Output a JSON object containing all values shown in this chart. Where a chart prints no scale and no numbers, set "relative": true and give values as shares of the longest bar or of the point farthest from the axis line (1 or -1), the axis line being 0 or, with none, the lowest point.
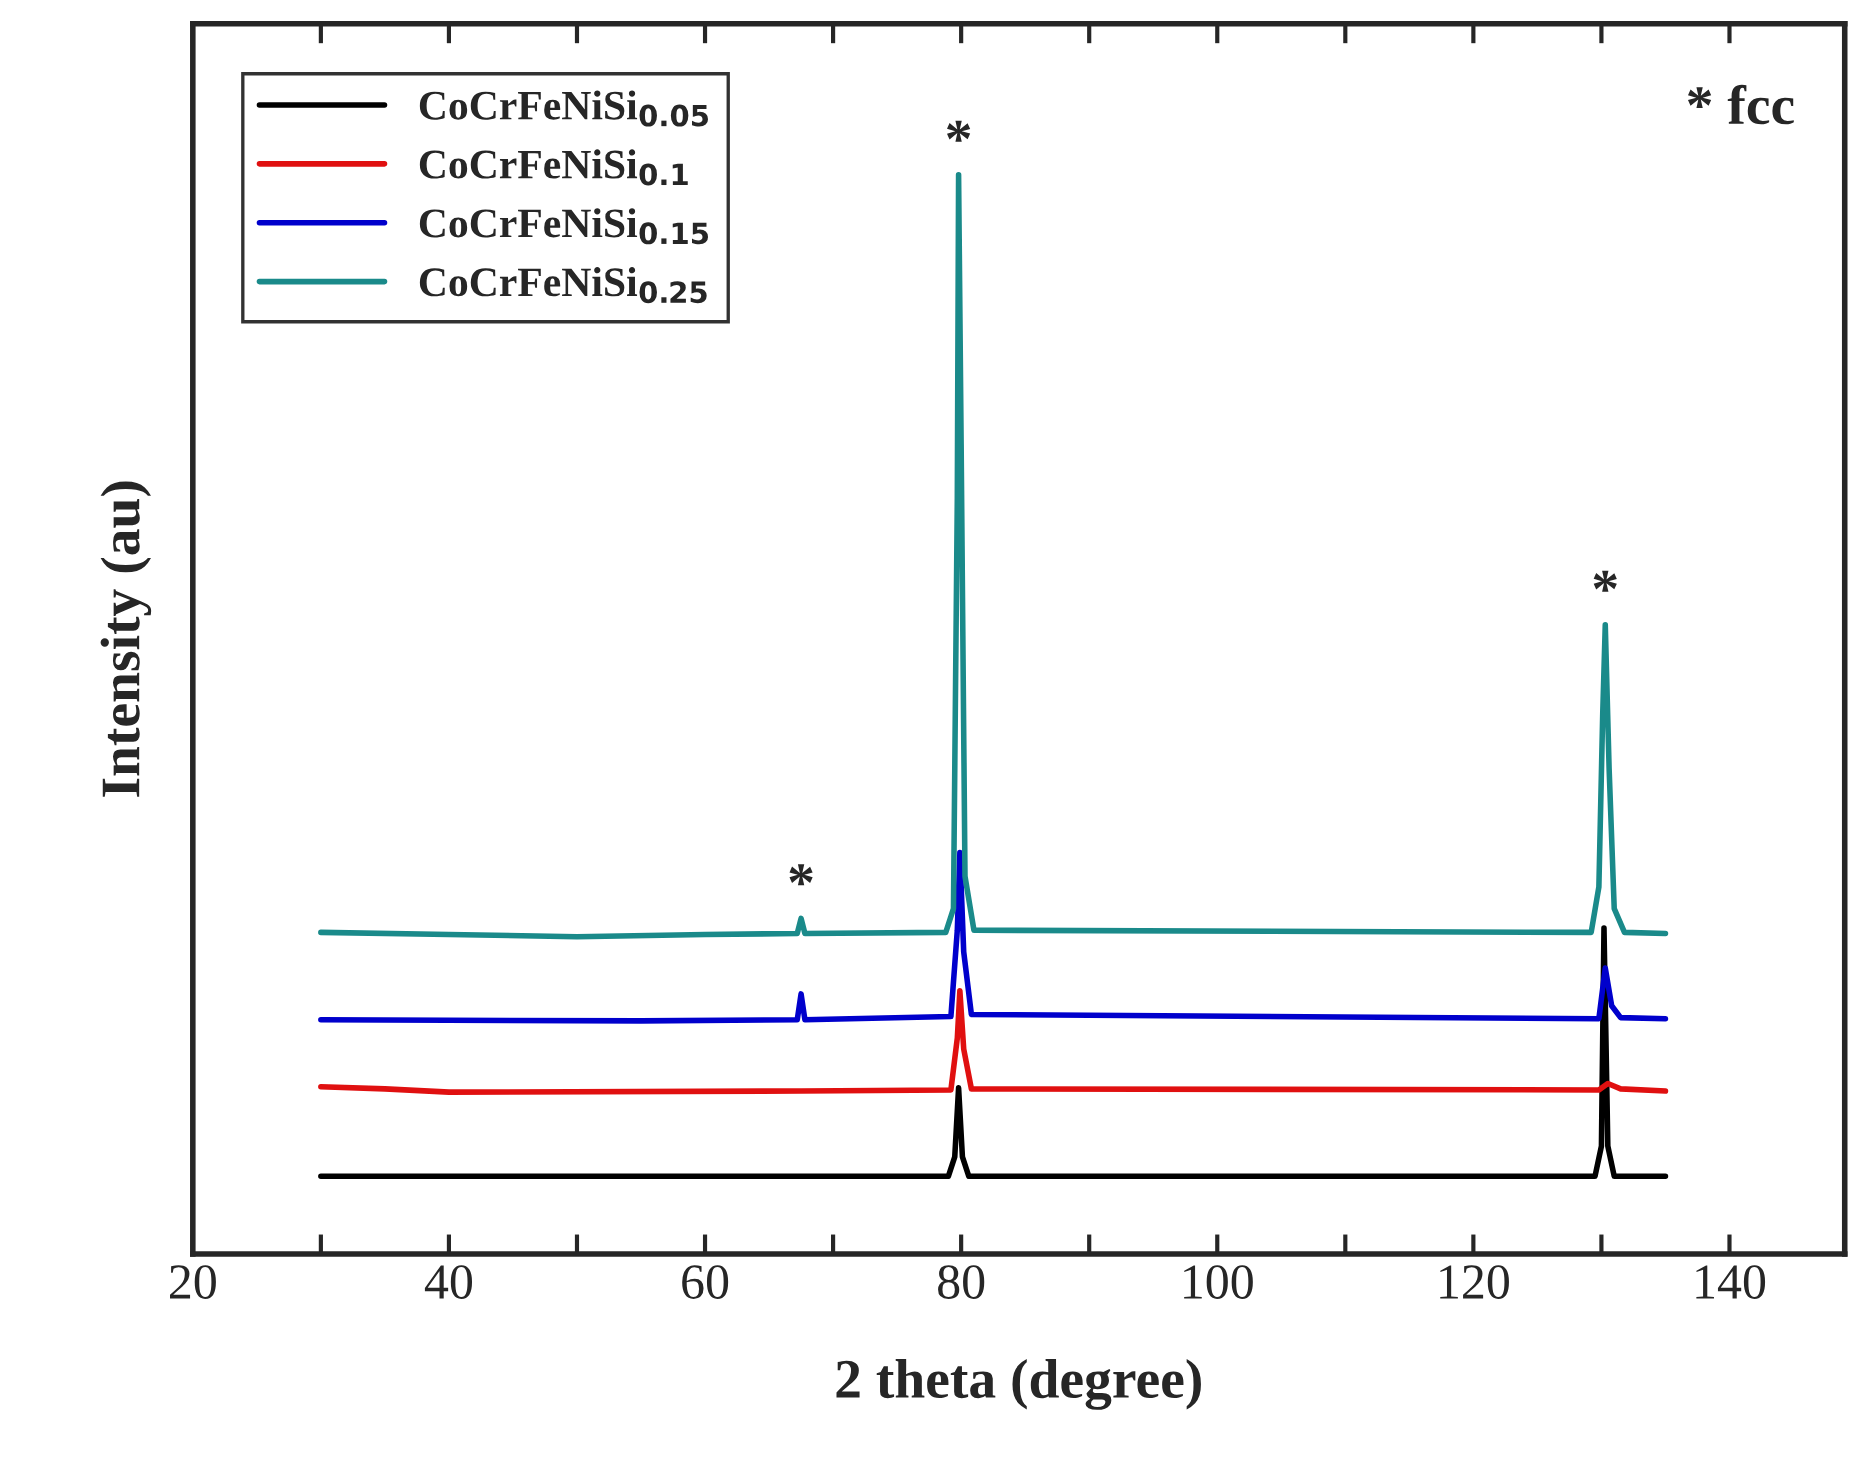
{
  "chart_data": {
    "type": "line",
    "relative": true,
    "xlabel": "2 theta (degree)",
    "ylabel": "Intensity (au)",
    "xlim": [
      20,
      149
    ],
    "xticks": [
      20,
      {
        "value": 30,
        "label": null
      },
      40,
      {
        "value": 50,
        "label": null
      },
      60,
      {
        "value": 70,
        "label": null
      },
      80,
      {
        "value": 90,
        "label": null
      },
      100,
      {
        "value": 110,
        "label": null
      },
      120,
      {
        "value": 130,
        "label": null
      },
      140
    ],
    "legend": "top left",
    "grid": false,
    "marker": "none",
    "line_style": "solid",
    "series": [
      {
        "name": "CoCrFeNiSi$_{0.05}$",
        "color": "#000000",
        "x": [
          30,
          79.0,
          79.5,
          79.8,
          80.1,
          80.6,
          129.5,
          130.0,
          130.2,
          130.5,
          131.0,
          135
        ],
        "values": [
          0.072,
          0.072,
          0.09,
          0.154,
          0.09,
          0.072,
          0.072,
          0.1,
          0.302,
          0.1,
          0.072,
          0.072
        ]
      },
      {
        "name": "CoCrFeNiSi$_{0.1}$",
        "color": "#e01010",
        "x": [
          30,
          35,
          40,
          67.5,
          79.2,
          79.7,
          79.9,
          80.2,
          80.8,
          129.8,
          130.5,
          131.5,
          135
        ],
        "values": [
          0.155,
          0.153,
          0.15,
          0.151,
          0.152,
          0.2,
          0.244,
          0.19,
          0.153,
          0.152,
          0.158,
          0.153,
          0.151
        ]
      },
      {
        "name": "CoCrFeNiSi$_{0.15}$",
        "color": "#0000cc",
        "x": [
          30,
          55,
          67.2,
          67.5,
          67.8,
          79.2,
          79.7,
          79.9,
          80.2,
          80.8,
          129.8,
          130.3,
          130.8,
          131.5,
          135
        ],
        "values": [
          0.217,
          0.216,
          0.217,
          0.241,
          0.217,
          0.22,
          0.3,
          0.372,
          0.28,
          0.222,
          0.218,
          0.265,
          0.23,
          0.219,
          0.218
        ]
      },
      {
        "name": "CoCrFeNiSi$_{0.25}$",
        "color": "#1a8a8a",
        "x": [
          30,
          40,
          50,
          60,
          67.2,
          67.5,
          67.8,
          78.8,
          79.4,
          79.7,
          79.8,
          80.0,
          80.3,
          81,
          129.2,
          129.8,
          130.1,
          130.3,
          130.6,
          131,
          131.8,
          135
        ],
        "values": [
          0.298,
          0.296,
          0.294,
          0.296,
          0.297,
          0.311,
          0.297,
          0.298,
          0.32,
          0.7,
          1.0,
          0.75,
          0.35,
          0.3,
          0.298,
          0.34,
          0.5,
          0.583,
          0.45,
          0.32,
          0.298,
          0.297
        ]
      }
    ],
    "annotations": [
      {
        "text": "*",
        "x": 67.5,
        "y": 0.311
      },
      {
        "text": "*",
        "x": 79.8,
        "y": 1.0
      },
      {
        "text": "*",
        "x": 130.3,
        "y": 0.583
      },
      "* fcc"
    ]
  }
}
